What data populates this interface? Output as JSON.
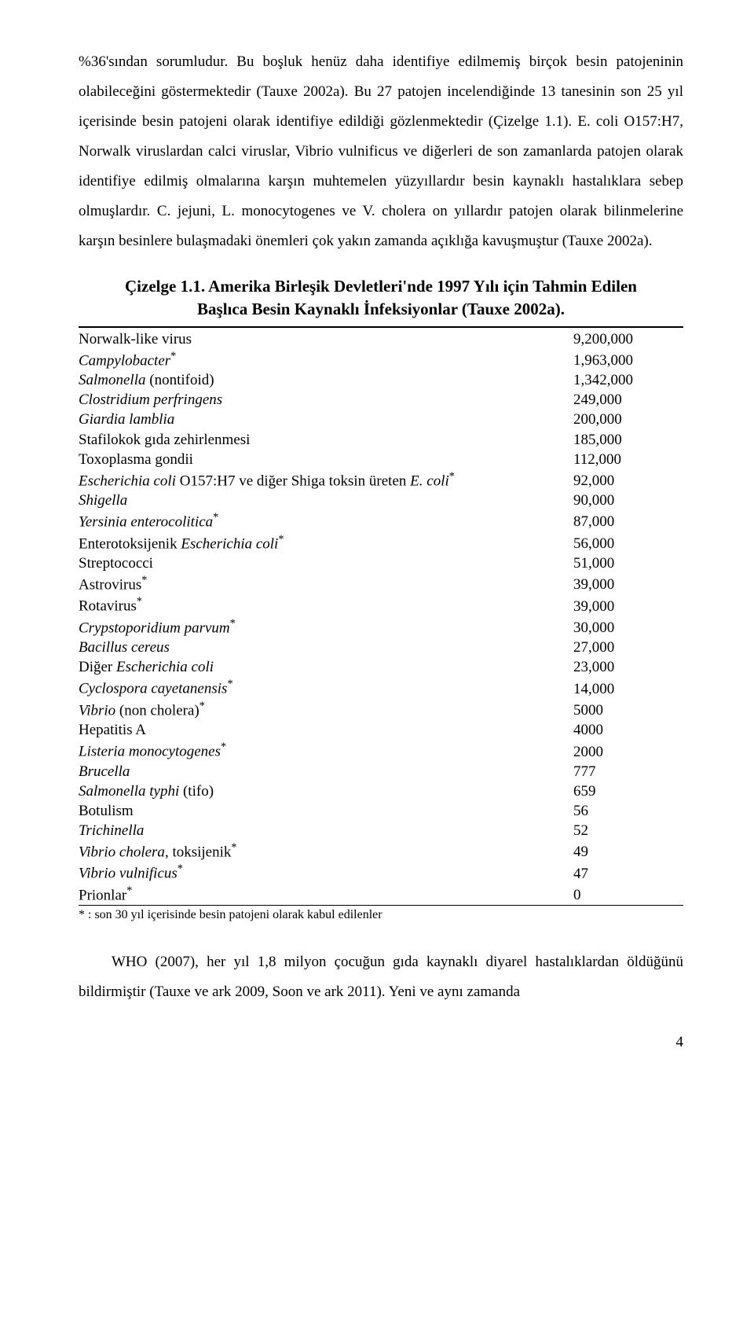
{
  "paragraph": {
    "text": "%36'sından sorumludur. Bu boşluk henüz daha identifiye edilmemiş birçok besin patojeninin olabileceğini göstermektedir (Tauxe 2002a). Bu 27 patojen incelendiğinde 13 tanesinin son 25 yıl içerisinde besin patojeni olarak identifiye edildiği gözlenmektedir (Çizelge 1.1). E. coli O157:H7, Norwalk viruslardan calci viruslar, Vibrio vulnificus ve diğerleri de son zamanlarda patojen olarak identifiye edilmiş olmalarına karşın muhtemelen yüzyıllardır besin kaynaklı hastalıklara sebep olmuşlardır. C. jejuni, L. monocytogenes ve V. cholera on yıllardır patojen olarak bilinmelerine karşın besinlere bulaşmadaki önemleri çok yakın zamanda açıklığa kavuşmuştur (Tauxe 2002a)."
  },
  "chartTitle": "Çizelge 1.1. Amerika Birleşik Devletleri'nde 1997 Yılı için Tahmin Edilen Başlıca Besin Kaynaklı İnfeksiyonlar (Tauxe 2002a).",
  "rows": [
    {
      "name": "Norwalk-like virus",
      "italic": false,
      "value": "9,200,000"
    },
    {
      "name": "Campylobacter*",
      "italic": true,
      "star": true,
      "value": "1,963,000"
    },
    {
      "name": "Salmonella (nontifoid)",
      "italic": true,
      "suffix": " (nontifoid)",
      "baseItalic": "Salmonella",
      "value": "1,342,000"
    },
    {
      "name": "Clostridium perfringens",
      "italic": true,
      "value": "249,000"
    },
    {
      "name": "Giardia lamblia",
      "italic": true,
      "value": "200,000"
    },
    {
      "name": "Stafilokok gıda zehirlenmesi",
      "italic": false,
      "value": "185,000"
    },
    {
      "name": "Toxoplasma gondii",
      "italic": false,
      "value": "112,000"
    },
    {
      "name": "Escherichia coli O157:H7 ve diğer Shiga toksin üreten E. coli*",
      "italic": false,
      "custom": "ecoli1",
      "value": "92,000"
    },
    {
      "name": "Shigella",
      "italic": true,
      "value": "90,000"
    },
    {
      "name": "Yersinia enterocolitica*",
      "italic": true,
      "star": true,
      "value": "87,000"
    },
    {
      "name": "Enterotoksijenik Escherichia coli*",
      "italic": false,
      "custom": "etec",
      "value": "56,000"
    },
    {
      "name": "Streptococci",
      "italic": false,
      "value": "51,000"
    },
    {
      "name": "Astrovirus*",
      "italic": false,
      "star": true,
      "value": "39,000"
    },
    {
      "name": "Rotavirus*",
      "italic": false,
      "star": true,
      "value": "39,000"
    },
    {
      "name": "Crypstoporidium parvum*",
      "italic": true,
      "star": true,
      "value": "30,000"
    },
    {
      "name": "Bacillus cereus",
      "italic": true,
      "value": "27,000"
    },
    {
      "name": "Diğer Escherichia coli",
      "italic": false,
      "custom": "diger",
      "value": "23,000"
    },
    {
      "name": "Cyclospora cayetanensis*",
      "italic": true,
      "star": true,
      "value": "14,000"
    },
    {
      "name": "Vibrio (non cholera)*",
      "italic": true,
      "suffix": " (non cholera)",
      "baseItalic": "Vibrio",
      "star": true,
      "value": "5000"
    },
    {
      "name": "Hepatitis A",
      "italic": false,
      "value": "4000"
    },
    {
      "name": "Listeria monocytogenes*",
      "italic": true,
      "star": true,
      "value": "2000"
    },
    {
      "name": "Brucella",
      "italic": true,
      "value": "777"
    },
    {
      "name": "Salmonella typhi (tifo)",
      "italic": true,
      "suffix": " (tifo)",
      "baseItalic": "Salmonella typhi",
      "value": "659"
    },
    {
      "name": "Botulism",
      "italic": false,
      "value": "56"
    },
    {
      "name": "Trichinella",
      "italic": true,
      "value": "52"
    },
    {
      "name": "Vibrio cholera, toksijenik*",
      "italic": true,
      "suffix": ", toksijenik",
      "baseItalic": "Vibrio cholera",
      "star": true,
      "value": "49"
    },
    {
      "name": "Vibrio vulnificus*",
      "italic": true,
      "star": true,
      "value": "47"
    },
    {
      "name": "Prionlar*",
      "italic": false,
      "star": true,
      "value": "0"
    }
  ],
  "footnote": "* : son 30 yıl içerisinde besin patojeni olarak kabul edilenler",
  "closing": "WHO (2007), her yıl 1,8 milyon çocuğun gıda kaynaklı diyarel hastalıklardan öldüğünü bildirmiştir (Tauxe ve ark 2009, Soon ve ark 2011). Yeni ve aynı zamanda",
  "pageNumber": "4"
}
